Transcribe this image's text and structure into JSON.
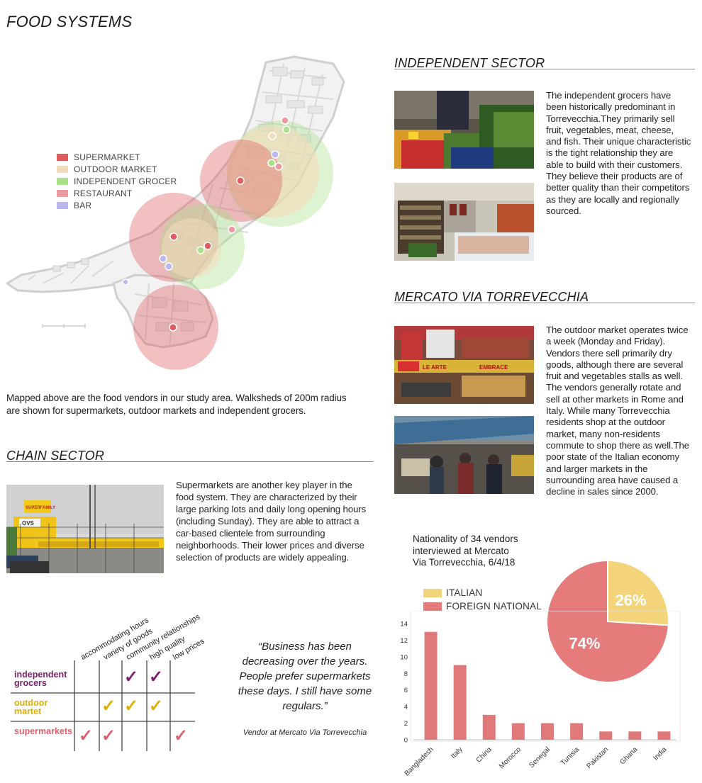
{
  "page": {
    "title": "FOOD SYSTEMS"
  },
  "colors": {
    "supermarket": "#e05a5e",
    "outdoor_market": "#f3dcbb",
    "independent_grocer": "#a9e08a",
    "restaurant": "#ec9aa2",
    "bar": "#b9b9ef",
    "independent_label": "#7b1f6a",
    "outdoor_label": "#e0b000",
    "supermarket_label": "#e06070",
    "pie_italian": "#f3d47a",
    "pie_foreign": "#e57b7b",
    "bar_fill": "#e07a7a"
  },
  "map": {
    "legend": [
      {
        "label": "SUPERMARKET",
        "color": "#e05a5e"
      },
      {
        "label": "OUTDOOR MARKET",
        "color": "#f3dcbb"
      },
      {
        "label": "INDEPENDENT GROCER",
        "color": "#a9e08a"
      },
      {
        "label": "RESTAURANT",
        "color": "#ec9aa2"
      },
      {
        "label": "BAR",
        "color": "#b9b9ef"
      }
    ],
    "caption": "Mapped above are the food vendors in our study area. Walksheds of 200m radius are shown for supermarkets, outdoor markets and independent grocers."
  },
  "independent": {
    "title": "INDEPENDENT SECTOR",
    "text": "The independent grocers have been historically predominant in Torrevecchia.They primarily sell fruit, vegetables, meat, cheese, and fish. Their unique characteristic is the tight relationship they are able to build with their customers. They believe their products are of better quality than their competitors as they are locally and regionally sourced."
  },
  "mercato": {
    "title": "MERCATO VIA TORREVECCHIA",
    "text": "The outdoor market operates twice a week (Monday and Friday). Vendors there sell primarily dry goods, although there are several fruit and vegetables stalls as well. The vendors generally rotate and sell at other markets in Rome and Italy. While many Torrevecchia residents shop at the outdoor market, many non-residents commute to shop there as well.The poor state of the Italian economy and larger markets in the surrounding area have caused a decline in sales since 2000.",
    "photo_sign_1": "LE ARTE",
    "photo_sign_2": "EMBRACE"
  },
  "chain": {
    "title": "CHAIN SECTOR",
    "text": "Supermarkets are another key player in the food system. They are characterized by their large parking lots and daily long opening hours (including Sunday). They are able to attract a car-based clientele from surrounding neighborhoods. Their lower prices and diverse selection of products are widely appealing.",
    "photo_sign": "OVS",
    "photo_brand": "SUPERFAMILY"
  },
  "matrix": {
    "columns": [
      "accommodating hours",
      "variety of goods",
      "community relationships",
      "high quality",
      "low prices"
    ],
    "rows": [
      {
        "label_line1": "independent",
        "label_line2": "grocers",
        "color": "#7b1f6a",
        "checks": [
          false,
          false,
          true,
          true,
          false
        ]
      },
      {
        "label_line1": "outdoor",
        "label_line2": "martet",
        "color": "#e0b000",
        "checks": [
          false,
          true,
          true,
          true,
          false
        ]
      },
      {
        "label_line1": "supermarkets",
        "label_line2": "",
        "color": "#e06070",
        "checks": [
          true,
          true,
          false,
          false,
          true
        ]
      }
    ],
    "check_glyph": "✓"
  },
  "quote": {
    "text": "“Business has been decreasing over the years. People prefer supermarkets these days. I still have some regulars.”",
    "line1": "“Business has been",
    "line2": "decreasing over the years.",
    "line3": "People prefer supermarkets",
    "line4": "these days. I still have some",
    "line5": "regulars.”",
    "attribution": "Vendor at Mercato Via Torrevecchia"
  },
  "chart_caption": {
    "line1": "Nationality of 34 vendors",
    "line2": "interviewed at Mercato",
    "line3": "Via Torrevecchia, 6/4/18"
  },
  "chart_data": [
    {
      "type": "pie",
      "title": "",
      "slices": [
        {
          "label": "ITALIAN",
          "value": 26,
          "display": "26%",
          "color": "#f3d47a"
        },
        {
          "label": "FOREIGN NATIONAL",
          "value": 74,
          "display": "74%",
          "color": "#e57b7b"
        }
      ],
      "legend_placement": "left"
    },
    {
      "type": "bar",
      "title": "",
      "categories": [
        "Bangladesh",
        "Italy",
        "China",
        "Morocco",
        "Senegal",
        "Tunisia",
        "Pakistan",
        "Ghana",
        "India"
      ],
      "values": [
        13,
        9,
        3,
        2,
        2,
        2,
        1,
        1,
        1
      ],
      "xlabel": "",
      "ylabel": "",
      "ylim": [
        0,
        14
      ],
      "yticks": [
        "0",
        "2",
        "4",
        "6",
        "8",
        "10",
        "12",
        "14"
      ],
      "grid": false
    }
  ]
}
